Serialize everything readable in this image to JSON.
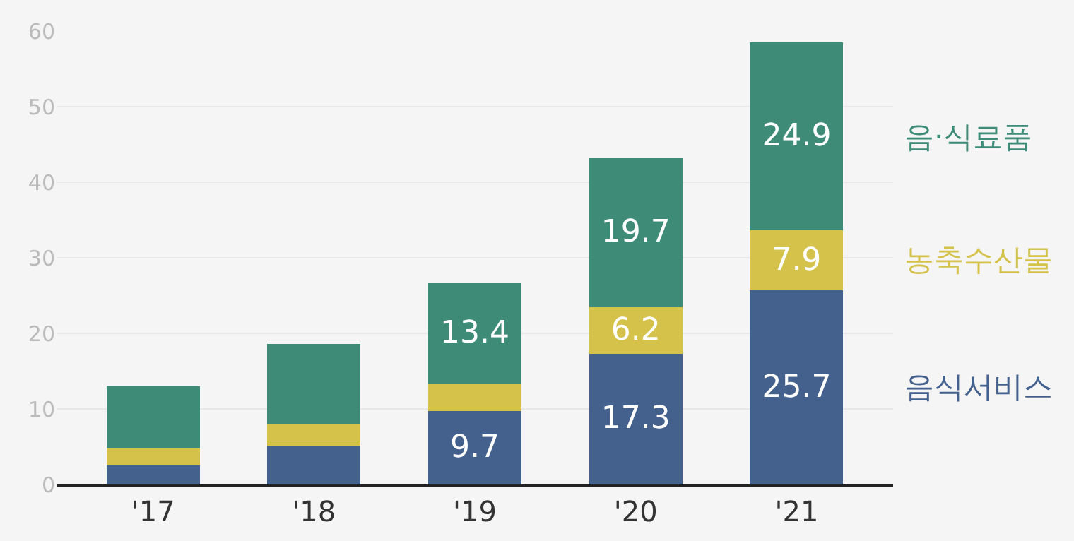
{
  "chart_data": {
    "type": "bar",
    "stacked": true,
    "categories": [
      "'17",
      "'18",
      "'19",
      "'20",
      "'21"
    ],
    "series": [
      {
        "name": "음식서비스",
        "color": "#44618e",
        "values": [
          2.5,
          5.1,
          9.7,
          17.3,
          25.7
        ],
        "value_labels": [
          null,
          null,
          "9.7",
          "17.3",
          "25.7"
        ]
      },
      {
        "name": "농축수산물",
        "color": "#d4c24a",
        "values": [
          2.3,
          2.9,
          3.6,
          6.2,
          7.9
        ],
        "value_labels": [
          null,
          null,
          null,
          "6.2",
          "7.9"
        ]
      },
      {
        "name": "음·식료품",
        "color": "#3e8c78",
        "values": [
          8.2,
          10.6,
          13.4,
          19.7,
          24.9
        ],
        "value_labels": [
          null,
          null,
          "13.4",
          "19.7",
          "24.9"
        ]
      }
    ],
    "ylim": [
      0,
      60
    ],
    "yticks": [
      0,
      10,
      20,
      30,
      40,
      50,
      60
    ],
    "grid": "y"
  }
}
